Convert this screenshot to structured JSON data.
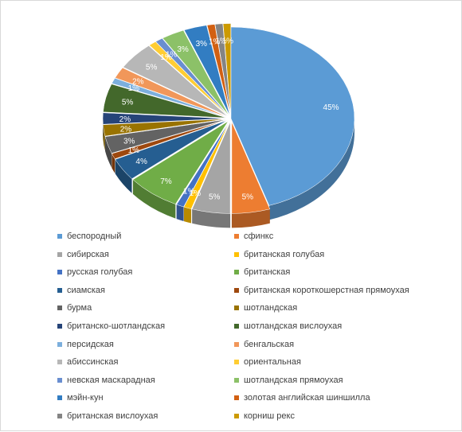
{
  "chart_data": {
    "type": "pie",
    "title": "",
    "style": "3d-exploded",
    "legend_position": "bottom",
    "slices": [
      {
        "label": "беспородный",
        "value": 45,
        "color": "#5B9BD5",
        "data_label": "45%"
      },
      {
        "label": "сфинкс",
        "value": 5,
        "color": "#ED7D31",
        "data_label": "5%"
      },
      {
        "label": "сибирская",
        "value": 5,
        "color": "#A5A5A5",
        "data_label": "5%"
      },
      {
        "label": "британская голубая",
        "value": 1,
        "color": "#FFC000",
        "data_label": "1%"
      },
      {
        "label": "русская голубая",
        "value": 1,
        "color": "#4472C4",
        "data_label": "1%"
      },
      {
        "label": "британская",
        "value": 7,
        "color": "#70AD47",
        "data_label": "7%"
      },
      {
        "label": "сиамская",
        "value": 4,
        "color": "#255E91",
        "data_label": "4%"
      },
      {
        "label": "британская короткошерстная прямоухая",
        "value": 1,
        "color": "#9E480E",
        "data_label": "1%"
      },
      {
        "label": "бурма",
        "value": 3,
        "color": "#636363",
        "data_label": "3%"
      },
      {
        "label": "шотландская",
        "value": 2,
        "color": "#997300",
        "data_label": "2%"
      },
      {
        "label": "британско-шотландская",
        "value": 2,
        "color": "#264478",
        "data_label": "2%"
      },
      {
        "label": "шотландская вислоухая",
        "value": 5,
        "color": "#43682B",
        "data_label": "5%"
      },
      {
        "label": "персидская",
        "value": 1,
        "color": "#7CAFDD",
        "data_label": "1%"
      },
      {
        "label": "бенгальская",
        "value": 2,
        "color": "#F1975A",
        "data_label": "2%"
      },
      {
        "label": "абиссинская",
        "value": 5,
        "color": "#B7B7B7",
        "data_label": "5%"
      },
      {
        "label": "ориентальная",
        "value": 1,
        "color": "#FFCD33",
        "data_label": "1%"
      },
      {
        "label": "невская маскарадная",
        "value": 1,
        "color": "#698ED0",
        "data_label": "1%"
      },
      {
        "label": "шотландская прямоухая",
        "value": 3,
        "color": "#8CC168",
        "data_label": "3%"
      },
      {
        "label": "мэйн-кун",
        "value": 3,
        "color": "#327DC2",
        "data_label": "3%"
      },
      {
        "label": "золотая английская шиншилла",
        "value": 1,
        "color": "#D26012",
        "data_label": "1%"
      },
      {
        "label": "британская вислоухая",
        "value": 1,
        "color": "#848484",
        "data_label": "1%"
      },
      {
        "label": "корниш рекс",
        "value": 1,
        "color": "#CC9A00",
        "data_label": "1%"
      }
    ]
  }
}
